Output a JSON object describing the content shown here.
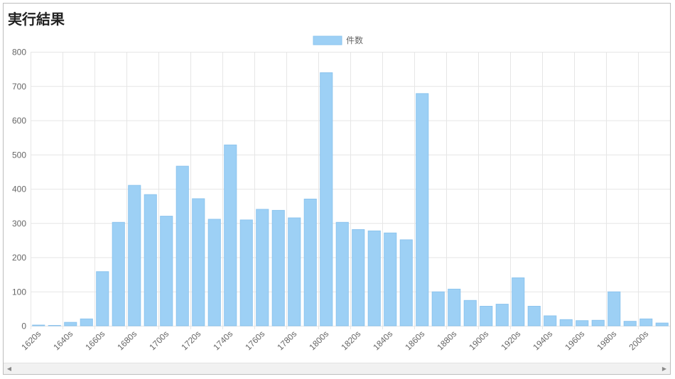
{
  "header": {
    "title": "実行結果"
  },
  "scrollbar": {
    "left_icon": "◀",
    "right_icon": "▶"
  },
  "colors": {
    "bar_fill": "#9dd0f5",
    "bar_stroke": "#8cc4ee",
    "grid": "#e6e6e6",
    "tick_text": "#666666"
  },
  "chart_data": {
    "type": "bar",
    "title": "",
    "xlabel": "",
    "ylabel": "",
    "ylim": [
      0,
      800
    ],
    "yticks": [
      0,
      100,
      200,
      300,
      400,
      500,
      600,
      700,
      800
    ],
    "grid": true,
    "legend_position": "top-center",
    "categories": [
      "1620s",
      "1630s",
      "1640s",
      "1650s",
      "1660s",
      "1670s",
      "1680s",
      "1690s",
      "1700s",
      "1710s",
      "1720s",
      "1730s",
      "1740s",
      "1750s",
      "1760s",
      "1770s",
      "1780s",
      "1790s",
      "1800s",
      "1810s",
      "1820s",
      "1830s",
      "1840s",
      "1850s",
      "1860s",
      "1870s",
      "1880s",
      "1890s",
      "1900s",
      "1910s",
      "1920s",
      "1930s",
      "1940s",
      "1950s",
      "1960s",
      "1970s",
      "1980s",
      "1990s",
      "2000s",
      "2010s"
    ],
    "visible_tick_labels": [
      "1620s",
      "1640s",
      "1660s",
      "1680s",
      "1700s",
      "1720s",
      "1740s",
      "1760s",
      "1780s",
      "1800s",
      "1820s",
      "1840s",
      "1860s",
      "1880s",
      "1900s",
      "1920s",
      "1940s",
      "1960s",
      "1980s",
      "2000s"
    ],
    "series": [
      {
        "name": "件数",
        "values": [
          2,
          1,
          10,
          20,
          158,
          302,
          410,
          383,
          320,
          466,
          371,
          311,
          528,
          309,
          340,
          337,
          315,
          370,
          739,
          302,
          281,
          277,
          271,
          251,
          678,
          99,
          107,
          74,
          57,
          63,
          140,
          57,
          29,
          18,
          15,
          16,
          99,
          13,
          20,
          8
        ]
      }
    ]
  }
}
